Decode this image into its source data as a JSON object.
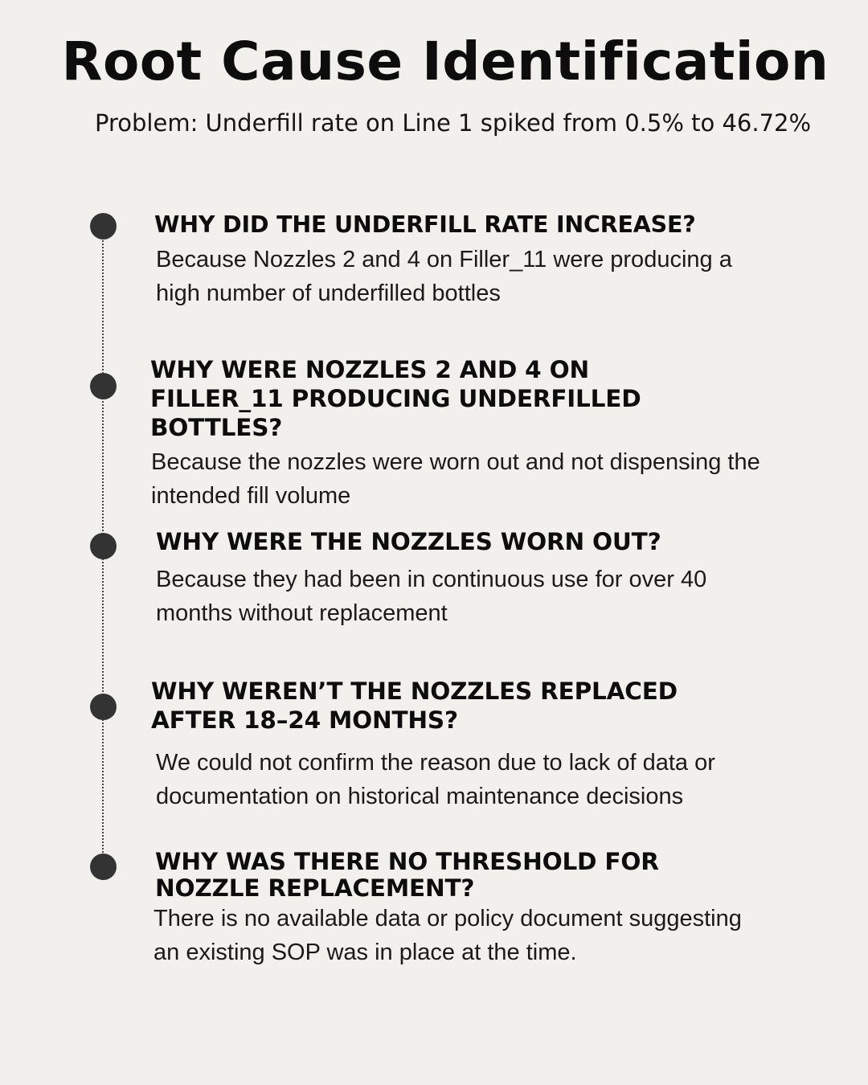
{
  "header": {
    "title": "Root Cause Identification",
    "problem": "Problem: Underfill rate on Line 1 spiked from 0.5% to 46.72%"
  },
  "steps": [
    {
      "question": "WHY DID THE UNDERFILL RATE INCREASE?",
      "answer": "Because Nozzles 2 and 4 on Filler_11 were producing a high number of underfilled bottles"
    },
    {
      "question": "WHY WERE NOZZLES 2 AND 4 ON FILLER_11 PRODUCING UNDERFILLED BOTTLES?",
      "answer": "Because the nozzles were worn out and not dispensing the intended fill volume"
    },
    {
      "question": "WHY WERE THE NOZZLES WORN OUT?",
      "answer": "Because they had been in continuous use for over 40 months without replacement"
    },
    {
      "question": "WHY WEREN’T THE NOZZLES REPLACED AFTER 18–24 MONTHS?",
      "answer": "We could not confirm the reason due to lack of data or documentation on historical maintenance decisions"
    },
    {
      "question": "WHY WAS THERE NO THRESHOLD FOR NOZZLE REPLACEMENT?",
      "answer": "There is no available data or policy document suggesting an existing SOP was in place at the time."
    }
  ]
}
